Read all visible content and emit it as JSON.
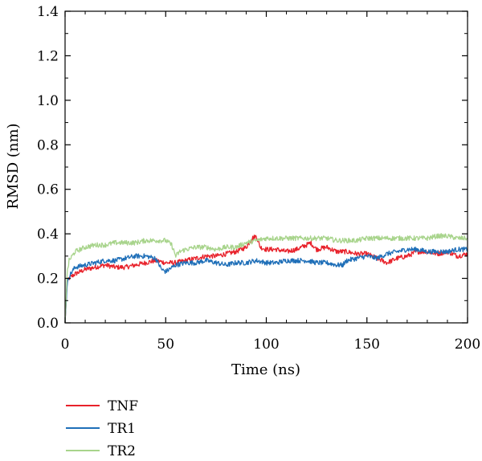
{
  "chart_data": {
    "type": "line",
    "title": "",
    "xlabel": "Time (ns)",
    "ylabel": "RMSD (nm)",
    "xlim": [
      0,
      200
    ],
    "ylim": [
      0.0,
      1.4
    ],
    "xticks": [
      0,
      50,
      100,
      150,
      200
    ],
    "xtick_labels": [
      "0",
      "50",
      "100",
      "150",
      "200"
    ],
    "yticks": [
      0.0,
      0.2,
      0.4,
      0.6,
      0.8,
      1.0,
      1.2,
      1.4
    ],
    "ytick_labels": [
      "0.0",
      "0.2",
      "0.4",
      "0.6",
      "0.8",
      "1.0",
      "1.2",
      "1.4"
    ],
    "grid": false,
    "legend_position": "below-left",
    "series": [
      {
        "name": "TNF",
        "color": "#e8222b",
        "x": [
          0,
          1,
          2,
          5,
          10,
          15,
          20,
          25,
          30,
          35,
          40,
          45,
          50,
          55,
          60,
          65,
          70,
          75,
          80,
          85,
          90,
          93,
          95,
          97,
          100,
          105,
          110,
          115,
          120,
          122,
          125,
          130,
          135,
          140,
          145,
          150,
          155,
          160,
          165,
          170,
          175,
          180,
          185,
          190,
          195,
          200
        ],
        "y": [
          0.0,
          0.18,
          0.2,
          0.22,
          0.24,
          0.25,
          0.26,
          0.25,
          0.25,
          0.26,
          0.27,
          0.28,
          0.27,
          0.27,
          0.28,
          0.29,
          0.3,
          0.3,
          0.31,
          0.32,
          0.34,
          0.38,
          0.39,
          0.34,
          0.33,
          0.33,
          0.32,
          0.33,
          0.35,
          0.36,
          0.33,
          0.34,
          0.32,
          0.32,
          0.31,
          0.31,
          0.29,
          0.27,
          0.29,
          0.3,
          0.32,
          0.32,
          0.31,
          0.32,
          0.3,
          0.31
        ]
      },
      {
        "name": "TR1",
        "color": "#1f6fb8",
        "x": [
          0,
          1,
          2,
          5,
          10,
          15,
          20,
          25,
          30,
          35,
          40,
          45,
          48,
          50,
          55,
          60,
          65,
          70,
          75,
          80,
          85,
          90,
          95,
          100,
          105,
          110,
          115,
          120,
          125,
          130,
          135,
          138,
          140,
          145,
          150,
          155,
          160,
          165,
          170,
          175,
          180,
          185,
          190,
          195,
          200
        ],
        "y": [
          0.0,
          0.17,
          0.21,
          0.25,
          0.26,
          0.27,
          0.28,
          0.28,
          0.29,
          0.3,
          0.3,
          0.29,
          0.24,
          0.23,
          0.26,
          0.27,
          0.27,
          0.28,
          0.27,
          0.26,
          0.27,
          0.27,
          0.28,
          0.27,
          0.27,
          0.28,
          0.28,
          0.28,
          0.27,
          0.27,
          0.26,
          0.26,
          0.28,
          0.29,
          0.3,
          0.29,
          0.31,
          0.32,
          0.33,
          0.33,
          0.32,
          0.32,
          0.32,
          0.33,
          0.33
        ]
      },
      {
        "name": "TR2",
        "color": "#a8d48c",
        "x": [
          0,
          1,
          2,
          5,
          10,
          15,
          20,
          25,
          30,
          35,
          40,
          45,
          50,
          53,
          55,
          57,
          60,
          65,
          70,
          75,
          80,
          85,
          90,
          95,
          100,
          105,
          110,
          115,
          120,
          125,
          130,
          135,
          140,
          145,
          150,
          155,
          160,
          165,
          170,
          175,
          180,
          185,
          190,
          195,
          200
        ],
        "y": [
          0.0,
          0.22,
          0.28,
          0.32,
          0.34,
          0.35,
          0.35,
          0.36,
          0.36,
          0.36,
          0.37,
          0.37,
          0.37,
          0.35,
          0.3,
          0.32,
          0.33,
          0.34,
          0.34,
          0.33,
          0.34,
          0.34,
          0.36,
          0.37,
          0.38,
          0.38,
          0.38,
          0.38,
          0.38,
          0.38,
          0.38,
          0.37,
          0.37,
          0.37,
          0.38,
          0.38,
          0.38,
          0.38,
          0.38,
          0.38,
          0.38,
          0.39,
          0.39,
          0.38,
          0.38
        ]
      }
    ]
  }
}
